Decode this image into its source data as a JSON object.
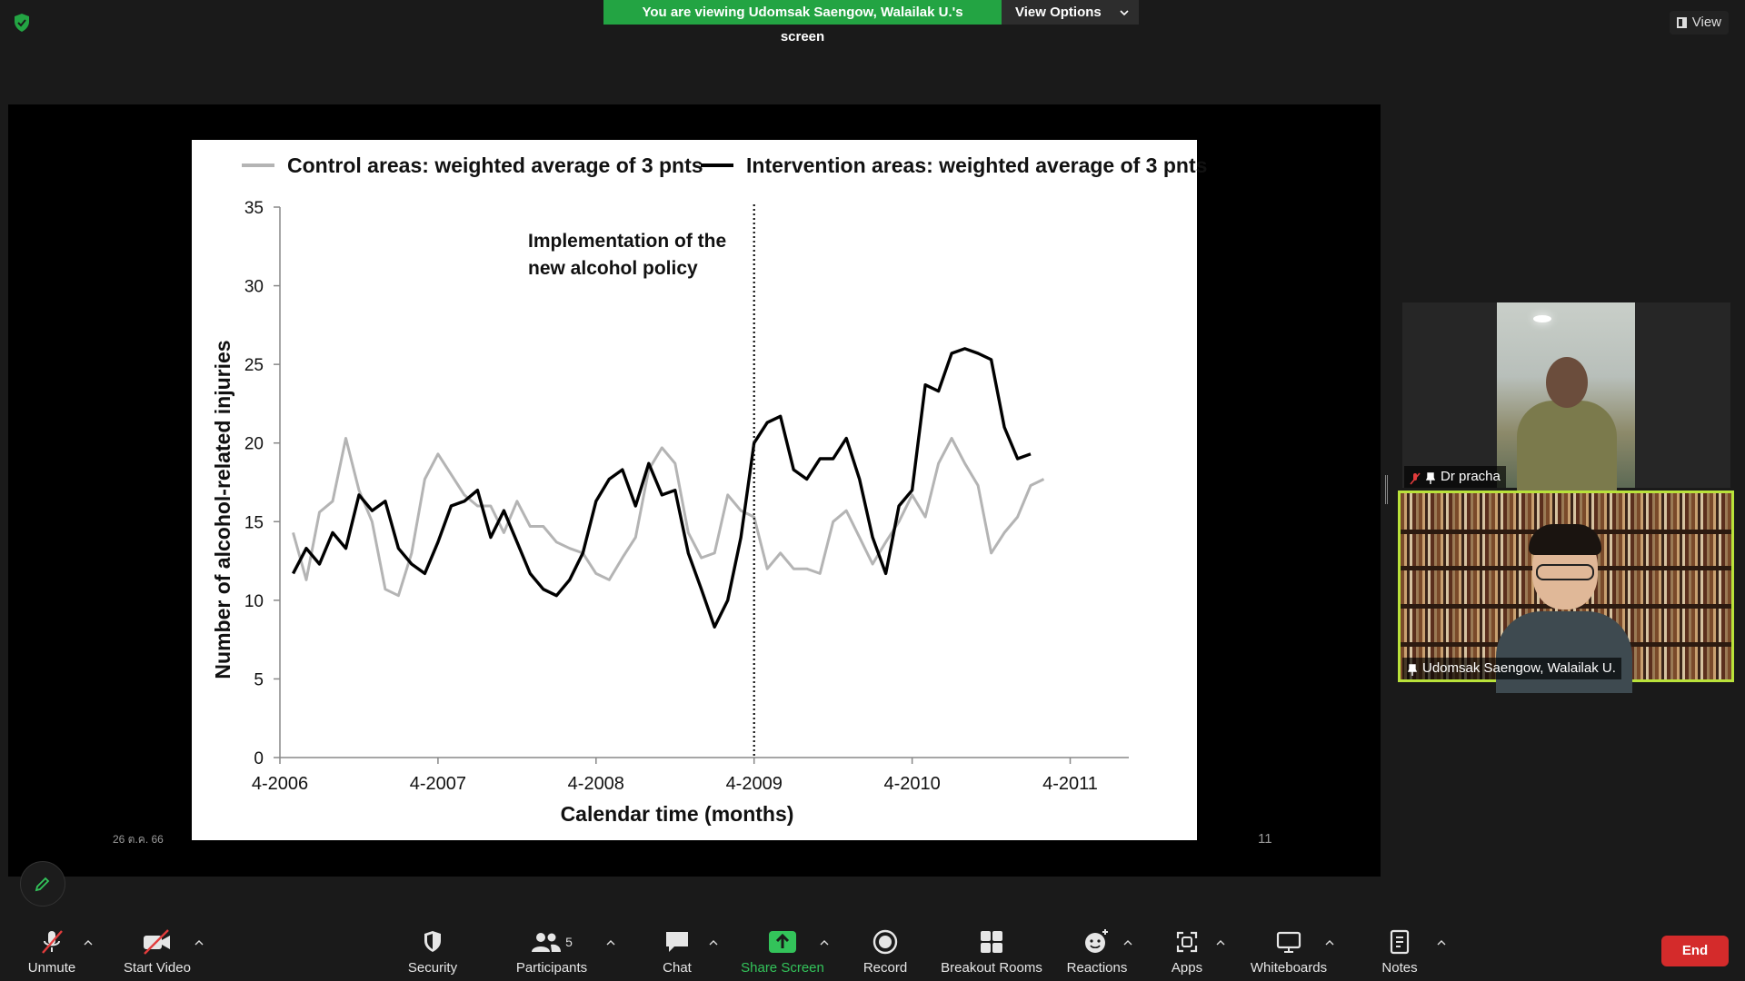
{
  "banner": {
    "message": "You are viewing Udomsak Saengow, Walailak U.'s screen",
    "view_options": "View Options"
  },
  "view_button": {
    "label": "View"
  },
  "slide": {
    "date": "26 ต.ค. 66",
    "page_number": "11"
  },
  "chart_data": {
    "type": "line",
    "xlabel": "Calendar time (months)",
    "ylabel": "Number of alcohol-related injuries",
    "ylim": [
      0,
      35
    ],
    "yticks": [
      0,
      5,
      10,
      15,
      20,
      25,
      30,
      35
    ],
    "x_tick_labels": [
      "4-2006",
      "4-2007",
      "4-2008",
      "4-2009",
      "4-2010",
      "4-2011"
    ],
    "xlim_months": [
      0,
      62
    ],
    "annotation": {
      "lines": [
        "Implementation of the",
        "new alcohol policy"
      ],
      "x_month": 36
    },
    "series": [
      {
        "name": "Control areas: weighted average of 3 pnts",
        "color": "#b4b4b4",
        "x_month": [
          1,
          2,
          3,
          4,
          5,
          6,
          7,
          8,
          9,
          10,
          11,
          12,
          13,
          14,
          15,
          16,
          17,
          18,
          19,
          20,
          21,
          22,
          23,
          24,
          25,
          26,
          27,
          28,
          29,
          30,
          31,
          32,
          33,
          34,
          35,
          36,
          37,
          38,
          39,
          40,
          41,
          42,
          43,
          44,
          45,
          46,
          47,
          48,
          49,
          50,
          51,
          52,
          53,
          54,
          55,
          56,
          57,
          58,
          59,
          60
        ],
        "values": [
          14.3,
          11.3,
          15.6,
          16.3,
          20.3,
          17.0,
          15.0,
          10.7,
          10.3,
          13.0,
          17.7,
          19.3,
          18.0,
          16.7,
          16.0,
          16.0,
          14.3,
          16.3,
          14.7,
          14.7,
          13.7,
          13.3,
          13.0,
          11.7,
          11.3,
          12.7,
          14.0,
          18.3,
          19.7,
          18.7,
          14.3,
          12.7,
          13.0,
          16.7,
          15.7,
          15.3,
          12.0,
          13.0,
          12.0,
          12.0,
          11.7,
          15.0,
          15.7,
          14.0,
          12.3,
          13.7,
          15.0,
          16.7,
          15.3,
          18.7,
          20.3,
          18.7,
          17.3,
          13.0,
          14.3,
          15.3,
          17.3,
          17.7,
          null,
          null
        ]
      },
      {
        "name": "Intervention areas: weighted average of 3 pnts",
        "color": "#000000",
        "x_month": [
          1,
          2,
          3,
          4,
          5,
          6,
          7,
          8,
          9,
          10,
          11,
          12,
          13,
          14,
          15,
          16,
          17,
          18,
          19,
          20,
          21,
          22,
          23,
          24,
          25,
          26,
          27,
          28,
          29,
          30,
          31,
          32,
          33,
          34,
          35,
          36,
          37,
          38,
          39,
          40,
          41,
          42,
          43,
          44,
          45,
          46,
          47,
          48,
          49,
          50,
          51,
          52,
          53,
          54,
          55,
          56,
          57,
          58,
          59,
          60
        ],
        "values": [
          11.7,
          13.3,
          12.3,
          14.3,
          13.3,
          16.7,
          15.7,
          16.3,
          13.3,
          12.3,
          11.7,
          13.7,
          16.0,
          16.3,
          17.0,
          14.0,
          15.7,
          13.7,
          11.7,
          10.7,
          10.3,
          11.3,
          13.0,
          16.3,
          17.7,
          18.3,
          16.0,
          18.7,
          16.7,
          17.0,
          13.0,
          10.7,
          8.3,
          10.0,
          14.0,
          20.0,
          21.3,
          21.7,
          18.3,
          17.7,
          19.0,
          19.0,
          20.3,
          17.7,
          14.0,
          11.7,
          16.0,
          17.0,
          23.7,
          23.3,
          25.7,
          26.0,
          25.7,
          25.3,
          21.0,
          19.0,
          19.3,
          null,
          null,
          null
        ]
      }
    ]
  },
  "participants": [
    {
      "name": "Dr pracha",
      "muted": true,
      "pinned": true
    },
    {
      "name": "Udomsak Saengow, Walailak U.",
      "muted": false,
      "pinned": true,
      "active_speaker": true
    }
  ],
  "toolbar": {
    "unmute": "Unmute",
    "start_video": "Start Video",
    "security": "Security",
    "participants": "Participants",
    "participants_count": "5",
    "chat": "Chat",
    "share_screen": "Share Screen",
    "record": "Record",
    "breakout_rooms": "Breakout Rooms",
    "reactions": "Reactions",
    "apps": "Apps",
    "whiteboards": "Whiteboards",
    "notes": "Notes",
    "end": "End"
  },
  "colors": {
    "banner_green": "#23a443",
    "end_red": "#d42b2b",
    "active_speaker_border": "#b9e23a",
    "share_green": "#33c35a"
  }
}
